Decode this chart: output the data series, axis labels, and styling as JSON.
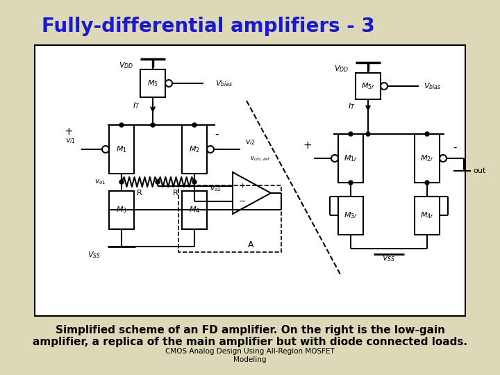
{
  "title": "Fully-differential amplifiers - 3",
  "title_color": "#1a1acc",
  "title_fontsize": 20,
  "bg_color": "#ddd8b8",
  "box_bg": "#ffffff",
  "caption_line1": "Simplified scheme of an FD amplifier. On the right is the low-gain",
  "caption_line2": "amplifier, a replica of the main amplifier but with diode connected loads.",
  "footer": "CMOS Analog Design Using All-Region MOSFET\nModeling",
  "caption_fontsize": 11,
  "footer_fontsize": 7.5
}
